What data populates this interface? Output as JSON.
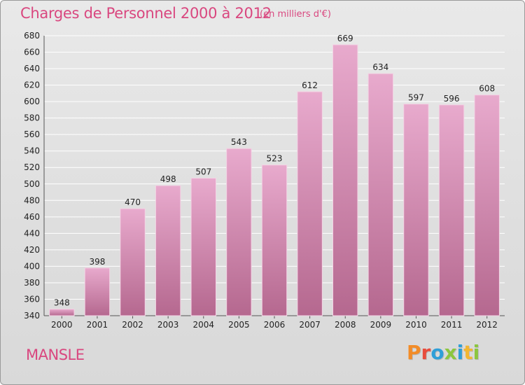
{
  "header": {
    "title": "Charges de Personnel 2000 à 2012",
    "subtitle": "(en milliers d'€)"
  },
  "footer": {
    "place": "MANSLE",
    "logo": [
      "P",
      "r",
      "o",
      "x",
      "i",
      "t",
      "i"
    ]
  },
  "colors": {
    "accent": "#d9477f",
    "bar_top": "#e8aacd",
    "bar_bottom": "#b5688f",
    "logo": [
      "#f28c28",
      "#e84c3d",
      "#2f9fd8",
      "#8cc63f",
      "#2f9fd8",
      "#f2b632",
      "#8cc63f"
    ]
  },
  "chart_data": {
    "type": "bar",
    "title": "Charges de Personnel 2000 à 2012",
    "subtitle": "(en milliers d'€)",
    "categories": [
      "2000",
      "2001",
      "2002",
      "2003",
      "2004",
      "2005",
      "2006",
      "2007",
      "2008",
      "2009",
      "2010",
      "2011",
      "2012"
    ],
    "values": [
      348,
      398,
      470,
      498,
      507,
      543,
      523,
      612,
      669,
      634,
      597,
      596,
      608
    ],
    "ylim": [
      340,
      680
    ],
    "yticks": [
      340,
      360,
      380,
      400,
      420,
      440,
      460,
      480,
      500,
      520,
      540,
      560,
      580,
      600,
      620,
      640,
      660,
      680
    ],
    "grid": true,
    "legend": "none"
  }
}
